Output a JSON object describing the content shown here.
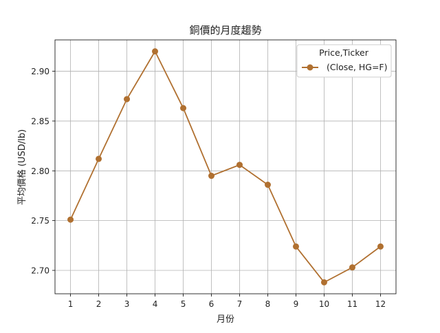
{
  "chart_data": {
    "type": "line",
    "title": "銅價的月度趨勢",
    "xlabel": "月份",
    "ylabel": "平均價格 (USD/lb)",
    "categories": [
      "1",
      "2",
      "3",
      "4",
      "5",
      "6",
      "7",
      "8",
      "9",
      "10",
      "11",
      "12"
    ],
    "x": [
      1,
      2,
      3,
      4,
      5,
      6,
      7,
      8,
      9,
      10,
      11,
      12
    ],
    "series": [
      {
        "name": "(Close, HG=F)",
        "values": [
          2.751,
          2.812,
          2.872,
          2.92,
          2.863,
          2.795,
          2.806,
          2.786,
          2.724,
          2.688,
          2.703,
          2.724
        ],
        "color": "#b07030",
        "marker": "circle"
      }
    ],
    "yticks": [
      "2.70",
      "2.75",
      "2.80",
      "2.85",
      "2.90"
    ],
    "ytick_values": [
      2.7,
      2.75,
      2.8,
      2.85,
      2.9
    ],
    "xlim": [
      0.45,
      12.55
    ],
    "ylim": [
      2.6765,
      2.9315
    ],
    "grid": true,
    "legend": {
      "title": "Price,Ticker",
      "placement": "top-right"
    }
  }
}
